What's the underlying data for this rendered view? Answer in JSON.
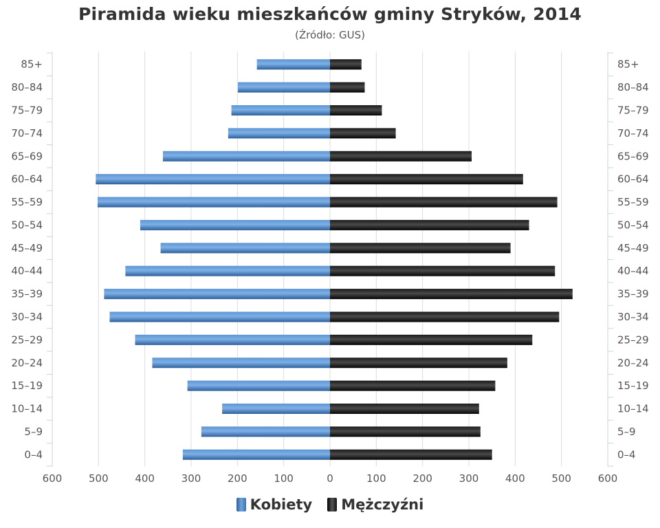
{
  "title": "Piramida wieku mieszkańców gminy Stryków, 2014",
  "subtitle": "(Źródło: GUS)",
  "chart_data": {
    "type": "bar",
    "orientation": "horizontal-population-pyramid",
    "categories": [
      "0–4",
      "5–9",
      "10–14",
      "15–19",
      "20–24",
      "25–29",
      "30–34",
      "35–39",
      "40–44",
      "45–49",
      "50–54",
      "55–59",
      "60–64",
      "65–69",
      "70–74",
      "75–79",
      "80–84",
      "85+"
    ],
    "series": [
      {
        "name": "Kobiety",
        "side": "left",
        "color": "#4a84c4",
        "values": [
          318,
          278,
          233,
          308,
          384,
          421,
          476,
          488,
          442,
          366,
          410,
          502,
          506,
          361,
          220,
          213,
          199,
          158
        ]
      },
      {
        "name": "Mężczyźni",
        "side": "right",
        "color": "#222222",
        "values": [
          350,
          325,
          322,
          357,
          383,
          437,
          495,
          524,
          486,
          390,
          430,
          491,
          417,
          306,
          142,
          112,
          75,
          68
        ]
      }
    ],
    "xlim": [
      -600,
      600
    ],
    "xticks": [
      600,
      500,
      400,
      300,
      200,
      100,
      0,
      100,
      200,
      300,
      400,
      500,
      600
    ],
    "grid": true,
    "legend": "bottom-center"
  }
}
